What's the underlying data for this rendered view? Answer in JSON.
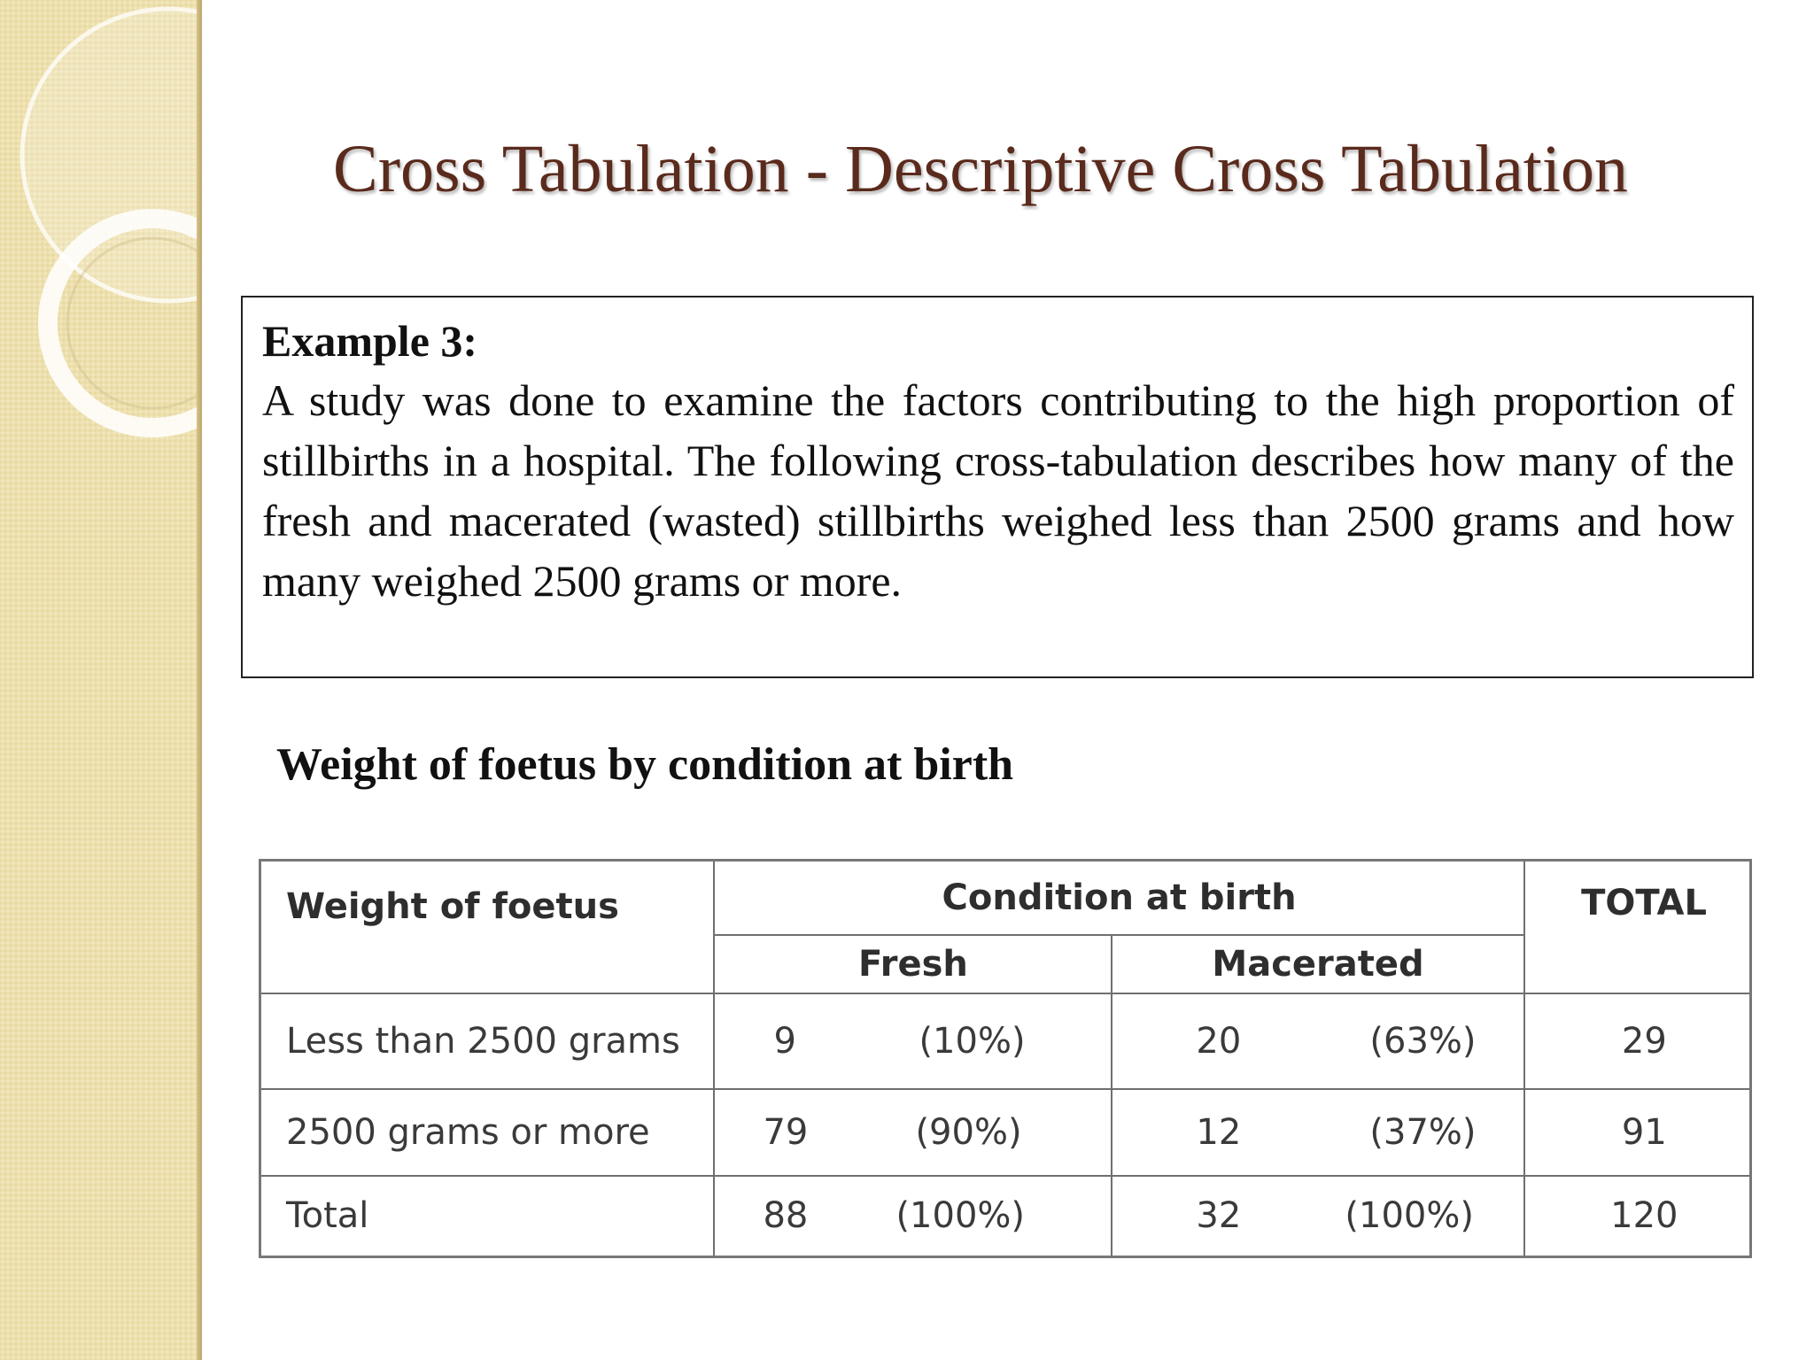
{
  "slide": {
    "title": "Cross Tabulation - Descriptive Cross Tabulation"
  },
  "example": {
    "heading": "Example 3:",
    "body": "A study was done to examine the factors contributing to the high proportion of stillbirths in a hospital. The following cross-tabulation describes how many of the fresh and macerated (wasted) stillbirths weighed less than 2500 grams and how many weighed 2500 grams or more."
  },
  "table": {
    "caption": "Weight of foetus by condition at birth",
    "headers": {
      "weight": "Weight of foetus",
      "condition": "Condition at birth",
      "fresh": "Fresh",
      "macerated": "Macerated",
      "total": "TOTAL"
    },
    "rows": [
      {
        "label": "Less than 2500 grams",
        "fresh_n": "9",
        "fresh_pct": "(10%)",
        "macerated_n": "20",
        "macerated_pct": "(63%)",
        "total": "29"
      },
      {
        "label": "2500 grams or more",
        "fresh_n": "79",
        "fresh_pct": "(90%)",
        "macerated_n": "12",
        "macerated_pct": "(37%)",
        "total": "91"
      },
      {
        "label": "Total",
        "fresh_n": "88",
        "fresh_pct": "(100%)",
        "macerated_n": "32",
        "macerated_pct": "(100%)",
        "total": "120"
      }
    ]
  }
}
